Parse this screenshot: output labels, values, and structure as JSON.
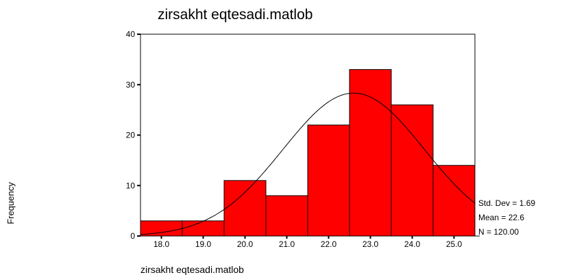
{
  "chart_data": {
    "type": "histogram",
    "title": "zirsakht eqtesadi.matlob",
    "x_label": "zirsakht eqtesadi.matlob",
    "y_label": "Frequency",
    "bins": [
      17.5,
      18.5,
      19.5,
      20.5,
      21.5,
      22.5,
      23.5,
      24.5,
      25.5
    ],
    "values": [
      3,
      3,
      11,
      8,
      22,
      33,
      26,
      14
    ],
    "color": "#ff0000",
    "xlim": [
      17.5,
      25.5
    ],
    "xticks": [
      {
        "value": 18,
        "label": "18.0"
      },
      {
        "value": 19,
        "label": "19.0"
      },
      {
        "value": 20,
        "label": "20.0"
      },
      {
        "value": 21,
        "label": "21.0"
      },
      {
        "value": 22,
        "label": "22.0"
      },
      {
        "value": 23,
        "label": "23.0"
      },
      {
        "value": 24,
        "label": "24.0"
      },
      {
        "value": 25,
        "label": "25.0"
      }
    ],
    "ylim": [
      0,
      40
    ],
    "yticks": [
      0,
      10,
      20,
      30,
      40
    ],
    "normal_curve": {
      "std_dev": 1.69,
      "mean": 22.6,
      "n": 120,
      "labels": [
        "Std. Dev = 1.69",
        "Mean = 22.6",
        "N = 120.00"
      ]
    }
  }
}
